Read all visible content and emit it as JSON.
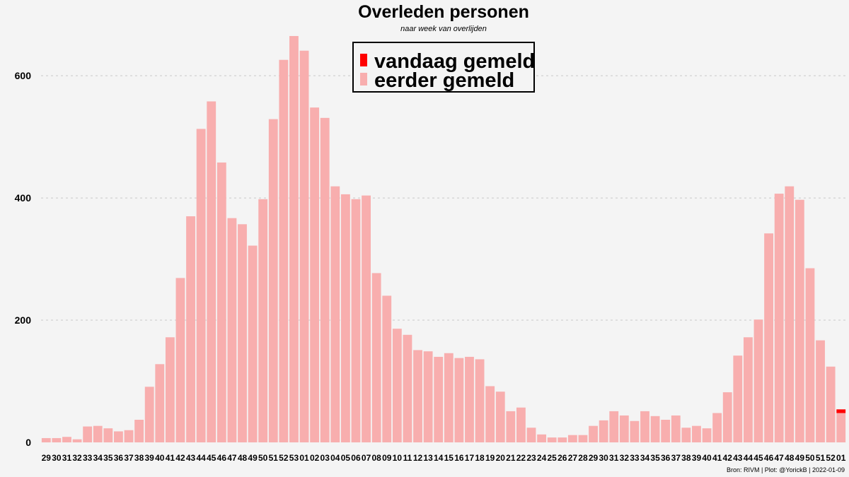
{
  "chart_data": {
    "type": "bar",
    "title": "Overleden personen",
    "subtitle": "naar week van overlijden",
    "caption": "Bron: RIVM | Plot: @YorickB |  2022-01-09",
    "xlabel": "",
    "ylabel": "",
    "ylim": [
      0,
      680
    ],
    "yticks": [
      0,
      200,
      400,
      600
    ],
    "grid": true,
    "legend_position": "top-center",
    "colors": {
      "vandaag": "#ff0000",
      "eerder": "#f8aeae",
      "background": "#f4f4f4"
    },
    "categories": [
      "29",
      "30",
      "31",
      "32",
      "33",
      "34",
      "35",
      "36",
      "37",
      "38",
      "39",
      "40",
      "41",
      "42",
      "43",
      "44",
      "45",
      "46",
      "47",
      "48",
      "49",
      "50",
      "51",
      "52",
      "53",
      "01",
      "02",
      "03",
      "04",
      "05",
      "06",
      "07",
      "08",
      "09",
      "10",
      "11",
      "12",
      "13",
      "14",
      "15",
      "16",
      "17",
      "18",
      "19",
      "20",
      "21",
      "22",
      "23",
      "24",
      "25",
      "26",
      "27",
      "28",
      "29",
      "30",
      "31",
      "32",
      "33",
      "34",
      "35",
      "36",
      "37",
      "38",
      "39",
      "40",
      "41",
      "42",
      "43",
      "44",
      "45",
      "46",
      "47",
      "48",
      "49",
      "50",
      "51",
      "52",
      "01"
    ],
    "series": [
      {
        "name": "vandaag gemeld",
        "values": [
          0,
          0,
          0,
          0,
          0,
          0,
          0,
          0,
          0,
          0,
          0,
          0,
          0,
          0,
          0,
          0,
          0,
          0,
          0,
          0,
          0,
          0,
          0,
          0,
          0,
          0,
          0,
          0,
          0,
          0,
          0,
          0,
          0,
          0,
          0,
          0,
          0,
          0,
          0,
          0,
          0,
          0,
          0,
          0,
          0,
          0,
          0,
          0,
          0,
          0,
          0,
          0,
          0,
          0,
          0,
          0,
          0,
          0,
          0,
          0,
          0,
          0,
          0,
          0,
          0,
          0,
          0,
          0,
          0,
          0,
          0,
          0,
          0,
          0,
          0,
          0,
          0,
          6
        ]
      },
      {
        "name": "eerder gemeld",
        "values": [
          7,
          7,
          9,
          5,
          26,
          27,
          23,
          18,
          20,
          37,
          91,
          128,
          172,
          269,
          370,
          513,
          558,
          458,
          367,
          357,
          322,
          398,
          529,
          626,
          665,
          641,
          548,
          531,
          419,
          406,
          398,
          404,
          277,
          240,
          186,
          176,
          151,
          149,
          140,
          146,
          138,
          140,
          136,
          92,
          83,
          51,
          57,
          24,
          13,
          8,
          8,
          12,
          12,
          27,
          36,
          51,
          44,
          35,
          51,
          43,
          37,
          44,
          24,
          27,
          23,
          48,
          82,
          142,
          172,
          201,
          342,
          407,
          419,
          397,
          285,
          167,
          124,
          48
        ]
      }
    ]
  }
}
